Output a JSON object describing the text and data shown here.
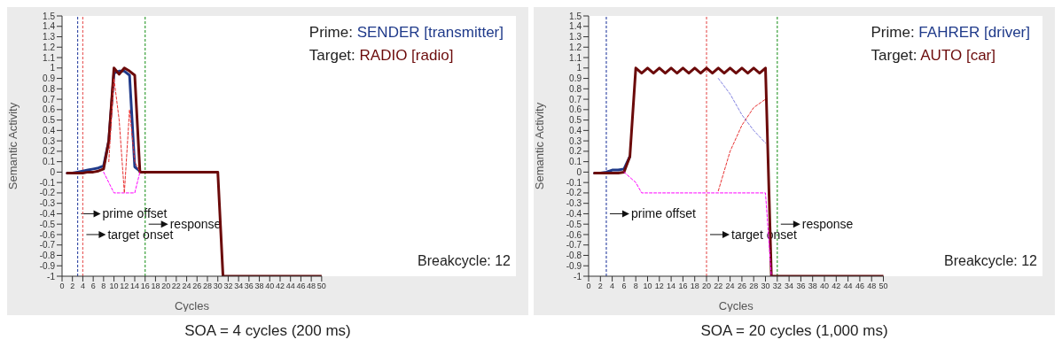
{
  "chart_data": [
    {
      "type": "line",
      "title": "SOA = 4 cycles (200 ms)",
      "xlabel": "Cycles",
      "ylabel": "Semantic Activity",
      "xlim": [
        0,
        50
      ],
      "ylim": [
        -1,
        1.5
      ],
      "xticks": [
        0,
        2,
        4,
        6,
        8,
        10,
        12,
        14,
        16,
        18,
        20,
        22,
        24,
        26,
        28,
        30,
        32,
        34,
        36,
        38,
        40,
        42,
        44,
        46,
        48,
        50
      ],
      "yticks": [
        -1,
        -0.9,
        -0.8,
        -0.7,
        -0.6,
        -0.5,
        -0.4,
        -0.3,
        -0.2,
        -0.1,
        0,
        0.1,
        0.2,
        0.3,
        0.4,
        0.5,
        0.6,
        0.7,
        0.8,
        0.9,
        1,
        1.1,
        1.2,
        1.3,
        1.4,
        1.5
      ],
      "grid": false,
      "legend": "top right",
      "annotations": [
        "Breakcycle: 12"
      ],
      "series": [
        {
          "color": "#ff00ff",
          "line_style": "dashed",
          "x": [
            8,
            9,
            10,
            11,
            12,
            13,
            14,
            15
          ],
          "values": [
            0,
            -0.1,
            -0.2,
            -0.2,
            -0.2,
            -0.2,
            -0.2,
            0
          ]
        },
        {
          "color": "#e83030",
          "line_style": "dashed",
          "x": [
            9,
            10,
            11,
            12,
            13,
            14,
            15
          ],
          "values": [
            0.1,
            0.9,
            0.5,
            -0.2,
            0.6,
            0.1,
            0
          ]
        },
        {
          "name": "Prime: SENDER [transmitter]",
          "color": "#1f3a8a",
          "line_style": "solid",
          "x": [
            1,
            2,
            3,
            4,
            5,
            6,
            7,
            8,
            9,
            10,
            11,
            12,
            13,
            14,
            15
          ],
          "values": [
            -0.01,
            -0.01,
            0,
            0.01,
            0.02,
            0.03,
            0.04,
            0.06,
            0.3,
            0.95,
            0.97,
            0.97,
            0.93,
            0.05,
            0.01
          ]
        },
        {
          "name": "Target: RADIO [radio]",
          "color": "#6b0a0a",
          "line_style": "solid",
          "x": [
            1,
            2,
            3,
            4,
            5,
            6,
            7,
            8,
            9,
            10,
            11,
            12,
            13,
            14,
            15,
            16,
            30,
            31,
            50
          ],
          "values": [
            -0.01,
            -0.01,
            -0.01,
            -0.01,
            0,
            0,
            0.01,
            0.03,
            0.3,
            1,
            0.94,
            1,
            0.97,
            0.93,
            0,
            0,
            0,
            -1,
            -1
          ]
        }
      ],
      "ref_lines": [
        {
          "axis": "x",
          "value": 3,
          "label": "prime offset",
          "color": "#3a4fa8",
          "line_style": "dashed"
        },
        {
          "axis": "x",
          "value": 4,
          "label": "target onset",
          "color": "#e86060",
          "line_style": "dashed"
        },
        {
          "axis": "x",
          "value": 16,
          "label": "response",
          "color": "#3aa03a",
          "line_style": "dashed"
        }
      ]
    },
    {
      "type": "line",
      "title": "SOA = 20 cycles (1,000 ms)",
      "xlabel": "Cycles",
      "ylabel": "Semantic Activity",
      "xlim": [
        0,
        50
      ],
      "ylim": [
        -1,
        1.5
      ],
      "xticks": [
        0,
        2,
        4,
        6,
        8,
        10,
        12,
        14,
        16,
        18,
        20,
        22,
        24,
        26,
        28,
        30,
        32,
        34,
        36,
        38,
        40,
        42,
        44,
        46,
        48,
        50
      ],
      "yticks": [
        -1,
        -0.9,
        -0.8,
        -0.7,
        -0.6,
        -0.5,
        -0.4,
        -0.3,
        -0.2,
        -0.1,
        0,
        0.1,
        0.2,
        0.3,
        0.4,
        0.5,
        0.6,
        0.7,
        0.8,
        0.9,
        1,
        1.1,
        1.2,
        1.3,
        1.4,
        1.5
      ],
      "grid": false,
      "legend": "top right",
      "annotations": [
        "Breakcycle: 12"
      ],
      "series": [
        {
          "color": "#ff00ff",
          "line_style": "dashed",
          "x": [
            6,
            7,
            8,
            9,
            10,
            12,
            14,
            16,
            18,
            20,
            22,
            24,
            26,
            28,
            30,
            31
          ],
          "values": [
            0,
            -0.05,
            -0.1,
            -0.2,
            -0.2,
            -0.2,
            -0.2,
            -0.2,
            -0.2,
            -0.2,
            -0.2,
            -0.2,
            -0.2,
            -0.2,
            -0.2,
            -1
          ]
        },
        {
          "color": "#e83030",
          "line_style": "dashed",
          "x": [
            22,
            24,
            26,
            28,
            30
          ],
          "values": [
            -0.18,
            0.2,
            0.45,
            0.62,
            0.7
          ]
        },
        {
          "color": "#8080e0",
          "line_style": "dashed",
          "x": [
            22,
            24,
            26,
            28,
            30
          ],
          "values": [
            0.9,
            0.75,
            0.55,
            0.4,
            0.28
          ]
        },
        {
          "name": "Prime: FAHRER [driver]",
          "color": "#1f3a8a",
          "line_style": "solid",
          "x": [
            1,
            2,
            3,
            4,
            5,
            6,
            7
          ],
          "values": [
            -0.01,
            -0.01,
            0,
            0.02,
            0.02,
            0.03,
            0.15
          ]
        },
        {
          "name": "Target: AUTO [car]",
          "color": "#6b0a0a",
          "line_style": "solid",
          "x": [
            1,
            2,
            3,
            4,
            5,
            6,
            7,
            8,
            9,
            10,
            11,
            12,
            13,
            14,
            15,
            16,
            17,
            18,
            19,
            20,
            21,
            22,
            23,
            24,
            25,
            26,
            27,
            28,
            29,
            30,
            31,
            50
          ],
          "values": [
            -0.01,
            -0.01,
            -0.01,
            -0.01,
            -0.01,
            0,
            0.15,
            1,
            0.95,
            1,
            0.95,
            1,
            0.95,
            1,
            0.95,
            1,
            0.95,
            1,
            0.95,
            1,
            0.95,
            1,
            0.95,
            1,
            0.95,
            1,
            0.95,
            1,
            0.95,
            1,
            -1,
            -1
          ]
        }
      ],
      "ref_lines": [
        {
          "axis": "x",
          "value": 3,
          "label": "prime offset",
          "color": "#3a4fa8",
          "line_style": "dashed"
        },
        {
          "axis": "x",
          "value": 20,
          "label": "target onset",
          "color": "#e86060",
          "line_style": "dashed"
        },
        {
          "axis": "x",
          "value": 32,
          "label": "response",
          "color": "#3aa03a",
          "line_style": "dashed"
        }
      ]
    }
  ]
}
